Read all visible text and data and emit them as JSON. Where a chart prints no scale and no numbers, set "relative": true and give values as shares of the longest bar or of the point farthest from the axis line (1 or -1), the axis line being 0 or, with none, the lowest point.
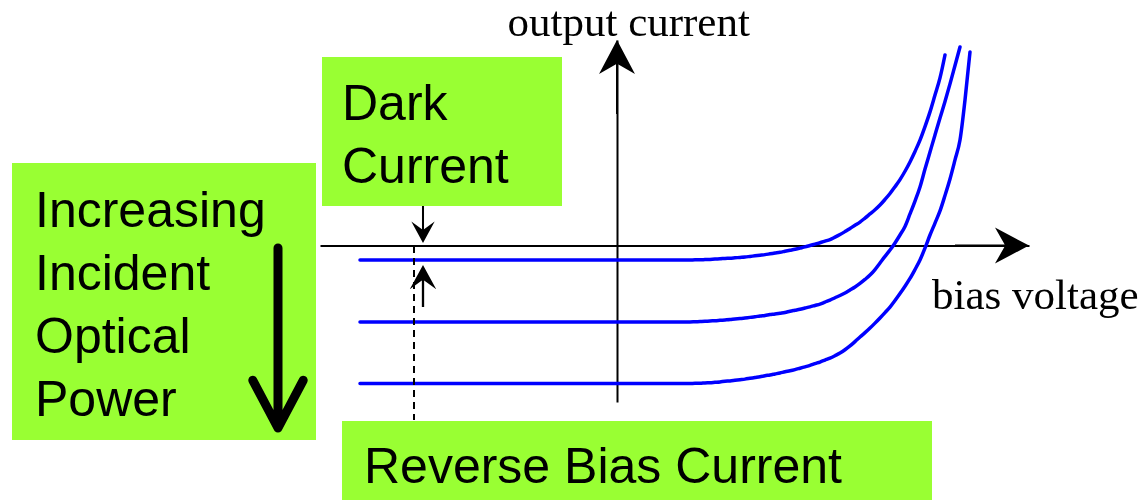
{
  "chart_data": {
    "type": "line",
    "relative": true,
    "xlabel": "bias voltage",
    "ylabel": "output current",
    "tick_labels": false,
    "line_style": "solid",
    "categories": [
      null,
      null,
      null,
      null,
      null,
      null,
      null,
      null,
      null,
      null,
      null,
      null,
      null,
      null,
      null,
      null,
      null,
      null,
      null,
      null,
      null,
      null,
      null,
      null,
      null,
      null,
      null,
      null,
      null,
      null,
      null,
      null,
      null,
      null,
      null,
      null,
      null,
      null,
      null,
      null,
      null,
      null,
      null,
      null,
      null,
      null,
      null,
      null,
      null,
      null,
      null,
      null,
      null,
      null,
      null,
      null,
      null,
      null,
      null,
      null,
      null,
      null,
      null,
      null,
      null,
      null,
      null,
      null,
      null,
      null,
      null,
      null,
      null,
      null,
      null,
      null,
      null,
      null,
      null,
      null,
      null,
      null,
      null,
      null,
      null,
      null,
      null,
      null,
      null,
      null,
      null,
      null,
      null,
      null,
      null,
      null,
      null,
      null,
      null,
      null,
      null,
      null,
      null,
      null,
      null,
      null,
      null,
      null,
      null,
      null,
      null,
      null,
      null,
      null,
      null,
      null,
      null,
      null,
      null,
      null,
      null,
      null,
      null
    ],
    "series": [
      {
        "color": "#0000ff",
        "values": [
          -0.073,
          -0.073,
          -0.073,
          -0.073,
          -0.073,
          -0.073,
          -0.073,
          -0.073,
          -0.073,
          -0.073,
          -0.073,
          -0.073,
          -0.073,
          -0.073,
          -0.073,
          -0.073,
          -0.073,
          -0.073,
          -0.073,
          -0.073,
          -0.073,
          -0.073,
          -0.073,
          -0.073,
          -0.073,
          -0.073,
          -0.073,
          -0.073,
          -0.073,
          -0.073,
          -0.073,
          -0.073,
          -0.073,
          -0.073,
          -0.073,
          -0.073,
          -0.073,
          -0.073,
          -0.073,
          -0.073,
          -0.073,
          -0.073,
          -0.073,
          -0.073,
          -0.073,
          -0.073,
          -0.073,
          -0.073,
          -0.073,
          -0.073,
          -0.073,
          -0.073,
          -0.073,
          -0.073,
          -0.073,
          -0.073,
          -0.073,
          -0.073,
          -0.073,
          -0.073,
          -0.073,
          -0.073,
          -0.073,
          -0.073,
          -0.073,
          -0.073,
          -0.073,
          -0.072,
          -0.072,
          -0.071,
          -0.07,
          -0.068,
          -0.067,
          -0.065,
          -0.064,
          -0.062,
          -0.06,
          -0.058,
          -0.055,
          -0.052,
          -0.049,
          -0.046,
          -0.042,
          -0.038,
          -0.034,
          -0.029,
          -0.024,
          -0.019,
          -0.013,
          -0.007,
          0.0,
          0.007,
          0.014,
          0.022,
          0.03,
          0.042,
          0.055,
          0.07,
          0.086,
          0.102,
          0.118,
          0.138,
          0.159,
          0.18,
          0.204,
          0.232,
          0.262,
          0.296,
          0.332,
          0.374,
          0.421,
          0.474,
          0.531,
          0.599,
          0.673,
          0.758,
          0.844,
          0.96,
          null,
          null,
          null,
          null,
          null
        ]
      },
      {
        "color": "#0000ff",
        "values": [
          -0.385,
          -0.385,
          -0.385,
          -0.385,
          -0.385,
          -0.385,
          -0.385,
          -0.385,
          -0.385,
          -0.385,
          -0.385,
          -0.385,
          -0.385,
          -0.385,
          -0.385,
          -0.385,
          -0.385,
          -0.385,
          -0.385,
          -0.385,
          -0.385,
          -0.385,
          -0.385,
          -0.385,
          -0.385,
          -0.385,
          -0.385,
          -0.385,
          -0.385,
          -0.385,
          -0.385,
          -0.385,
          -0.385,
          -0.385,
          -0.385,
          -0.385,
          -0.385,
          -0.385,
          -0.385,
          -0.385,
          -0.385,
          -0.385,
          -0.385,
          -0.385,
          -0.385,
          -0.385,
          -0.385,
          -0.385,
          -0.385,
          -0.385,
          -0.385,
          -0.385,
          -0.385,
          -0.385,
          -0.385,
          -0.385,
          -0.385,
          -0.385,
          -0.385,
          -0.385,
          -0.385,
          -0.385,
          -0.385,
          -0.385,
          -0.385,
          -0.385,
          -0.385,
          -0.384,
          -0.383,
          -0.382,
          -0.38,
          -0.379,
          -0.377,
          -0.375,
          -0.373,
          -0.37,
          -0.368,
          -0.365,
          -0.362,
          -0.359,
          -0.355,
          -0.352,
          -0.348,
          -0.345,
          -0.341,
          -0.337,
          -0.331,
          -0.326,
          -0.321,
          -0.315,
          -0.309,
          -0.302,
          -0.295,
          -0.285,
          -0.275,
          -0.263,
          -0.252,
          -0.239,
          -0.224,
          -0.209,
          -0.191,
          -0.171,
          -0.149,
          -0.121,
          -0.088,
          -0.055,
          -0.023,
          0.013,
          0.053,
          0.096,
          0.159,
          0.224,
          0.295,
          0.385,
          0.471,
          0.557,
          0.642,
          0.725,
          0.814,
          0.907,
          1.0,
          null,
          null
        ]
      },
      {
        "color": "#0000ff",
        "values": [
          -0.695,
          -0.695,
          -0.695,
          -0.695,
          -0.695,
          -0.695,
          -0.695,
          -0.695,
          -0.695,
          -0.695,
          -0.695,
          -0.695,
          -0.695,
          -0.695,
          -0.695,
          -0.695,
          -0.695,
          -0.695,
          -0.695,
          -0.695,
          -0.695,
          -0.695,
          -0.695,
          -0.695,
          -0.695,
          -0.695,
          -0.695,
          -0.695,
          -0.695,
          -0.695,
          -0.695,
          -0.695,
          -0.695,
          -0.695,
          -0.695,
          -0.695,
          -0.695,
          -0.695,
          -0.695,
          -0.695,
          -0.695,
          -0.695,
          -0.695,
          -0.695,
          -0.695,
          -0.695,
          -0.695,
          -0.695,
          -0.695,
          -0.695,
          -0.695,
          -0.695,
          -0.695,
          -0.695,
          -0.695,
          -0.695,
          -0.695,
          -0.695,
          -0.695,
          -0.695,
          -0.695,
          -0.695,
          -0.695,
          -0.695,
          -0.695,
          -0.695,
          -0.695,
          -0.694,
          -0.694,
          -0.692,
          -0.691,
          -0.689,
          -0.687,
          -0.684,
          -0.682,
          -0.679,
          -0.676,
          -0.673,
          -0.669,
          -0.665,
          -0.661,
          -0.656,
          -0.652,
          -0.647,
          -0.642,
          -0.636,
          -0.631,
          -0.625,
          -0.618,
          -0.611,
          -0.604,
          -0.595,
          -0.587,
          -0.577,
          -0.567,
          -0.555,
          -0.542,
          -0.525,
          -0.506,
          -0.484,
          -0.461,
          -0.439,
          -0.416,
          -0.391,
          -0.365,
          -0.338,
          -0.31,
          -0.277,
          -0.242,
          -0.205,
          -0.166,
          -0.121,
          -0.073,
          -0.013,
          0.053,
          0.113,
          0.174,
          0.252,
          0.335,
          0.431,
          0.531,
          0.733,
          0.975
        ]
      }
    ],
    "annotations": [
      "Dark Current",
      "Increasing Incident Optical Power",
      "Reverse Bias Current"
    ]
  }
}
